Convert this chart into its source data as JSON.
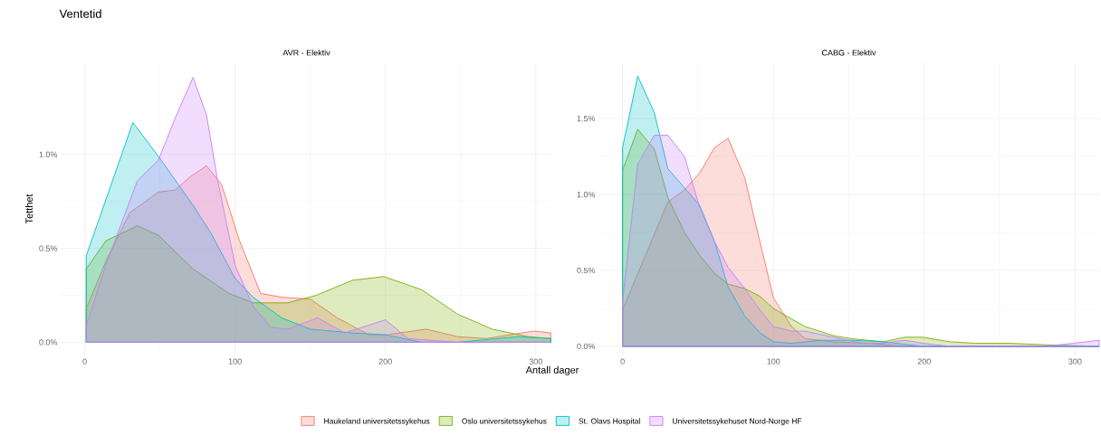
{
  "chart_data": [
    {
      "type": "area",
      "title": "Ventetid",
      "subtitle": "AVR - Elektiv",
      "xlabel": "Antall dager",
      "ylabel": "Tetthet",
      "xlim": [
        -16,
        311
      ],
      "ylim": [
        -0.07,
        1.49
      ],
      "xticks": [
        0,
        100,
        200,
        300
      ],
      "yticks": [
        {
          "value": 0,
          "label": "0.0%"
        },
        {
          "value": 0.5,
          "label": "0.5%"
        },
        {
          "value": 1.0,
          "label": "1.0%"
        }
      ],
      "grid": true,
      "legend": "bottom",
      "series": [
        {
          "name": "Haukeland universitetssykehus",
          "color": "#f8766d",
          "x": [
            1,
            14,
            30,
            49,
            60,
            70,
            81,
            91,
            103,
            117,
            131,
            150,
            168,
            189,
            201,
            227,
            248,
            267,
            299,
            310
          ],
          "values": [
            0.18,
            0.43,
            0.69,
            0.8,
            0.81,
            0.88,
            0.94,
            0.84,
            0.54,
            0.26,
            0.24,
            0.23,
            0.13,
            0.04,
            0.04,
            0.07,
            0.03,
            0.02,
            0.06,
            0.05
          ]
        },
        {
          "name": "Oslo universitetssykehus",
          "color": "#7cae00",
          "x": [
            1,
            14,
            35,
            49,
            72,
            96,
            112,
            135,
            154,
            178,
            199,
            224,
            248,
            271,
            295,
            310
          ],
          "values": [
            0.39,
            0.54,
            0.62,
            0.57,
            0.39,
            0.26,
            0.21,
            0.21,
            0.25,
            0.33,
            0.35,
            0.28,
            0.15,
            0.07,
            0.03,
            0.02
          ]
        },
        {
          "name": "St. Olavs Hospital",
          "color": "#00bfc4",
          "x": [
            1,
            32,
            49,
            72,
            84,
            100,
            112,
            131,
            150,
            178,
            200,
            224,
            248,
            288,
            310
          ],
          "values": [
            0.46,
            1.17,
            0.99,
            0.73,
            0.58,
            0.34,
            0.24,
            0.13,
            0.07,
            0.05,
            0.04,
            0.0,
            0.0,
            0.03,
            0.02
          ]
        },
        {
          "name": "Universitetssykehuset Nord-Norge HF",
          "color": "#c77cff",
          "x": [
            1,
            14,
            35,
            49,
            60,
            72,
            81,
            88,
            100,
            112,
            124,
            135,
            155,
            173,
            200,
            215,
            248,
            310
          ],
          "values": [
            0.09,
            0.41,
            0.86,
            0.97,
            1.19,
            1.41,
            1.21,
            0.88,
            0.41,
            0.19,
            0.08,
            0.07,
            0.13,
            0.05,
            0.12,
            0.02,
            0.0,
            0.0
          ]
        }
      ]
    },
    {
      "type": "area",
      "subtitle": "CABG - Elektiv",
      "xlim": [
        -16,
        316
      ],
      "ylim": [
        -0.06,
        1.87
      ],
      "xticks": [
        0,
        100,
        200,
        300
      ],
      "yticks": [
        {
          "value": 0,
          "label": "0.0%"
        },
        {
          "value": 0.5,
          "label": "0.5%"
        },
        {
          "value": 1.0,
          "label": "1.0%"
        },
        {
          "value": 1.5,
          "label": "1.5%"
        }
      ],
      "grid": true,
      "series": [
        {
          "color": "#f8766d",
          "x": [
            0,
            30,
            41,
            51,
            61,
            70,
            81,
            91,
            100,
            112,
            121,
            140,
            164,
            187,
            316
          ],
          "values": [
            0.24,
            0.95,
            1.03,
            1.14,
            1.31,
            1.37,
            1.11,
            0.69,
            0.32,
            0.13,
            0.05,
            0.03,
            0.02,
            0.0,
            0.0
          ]
        },
        {
          "color": "#7cae00",
          "x": [
            0,
            10,
            21,
            30,
            41,
            51,
            61,
            70,
            81,
            91,
            100,
            112,
            121,
            140,
            152,
            173,
            187,
            199,
            217,
            234,
            257,
            280,
            316
          ],
          "values": [
            1.16,
            1.43,
            1.3,
            0.98,
            0.75,
            0.6,
            0.48,
            0.41,
            0.38,
            0.33,
            0.25,
            0.18,
            0.13,
            0.07,
            0.05,
            0.03,
            0.06,
            0.06,
            0.03,
            0.02,
            0.02,
            0.01,
            0.0
          ]
        },
        {
          "color": "#00bfc4",
          "x": [
            0,
            10,
            21,
            30,
            51,
            61,
            70,
            81,
            91,
            100,
            112,
            131,
            152,
            173,
            199,
            316
          ],
          "values": [
            1.31,
            1.78,
            1.54,
            1.17,
            0.93,
            0.69,
            0.39,
            0.2,
            0.09,
            0.03,
            0.02,
            0.04,
            0.04,
            0.03,
            0.0,
            0.0
          ]
        },
        {
          "color": "#c77cff",
          "x": [
            0,
            10,
            21,
            30,
            41,
            51,
            61,
            70,
            81,
            91,
            100,
            112,
            121,
            140,
            159,
            173,
            187,
            199,
            217,
            280,
            299,
            316
          ],
          "values": [
            0.3,
            1.2,
            1.39,
            1.39,
            1.25,
            0.92,
            0.69,
            0.52,
            0.38,
            0.24,
            0.13,
            0.1,
            0.1,
            0.06,
            0.02,
            0.02,
            0.04,
            0.02,
            0.0,
            0.0,
            0.02,
            0.04
          ]
        }
      ]
    }
  ]
}
